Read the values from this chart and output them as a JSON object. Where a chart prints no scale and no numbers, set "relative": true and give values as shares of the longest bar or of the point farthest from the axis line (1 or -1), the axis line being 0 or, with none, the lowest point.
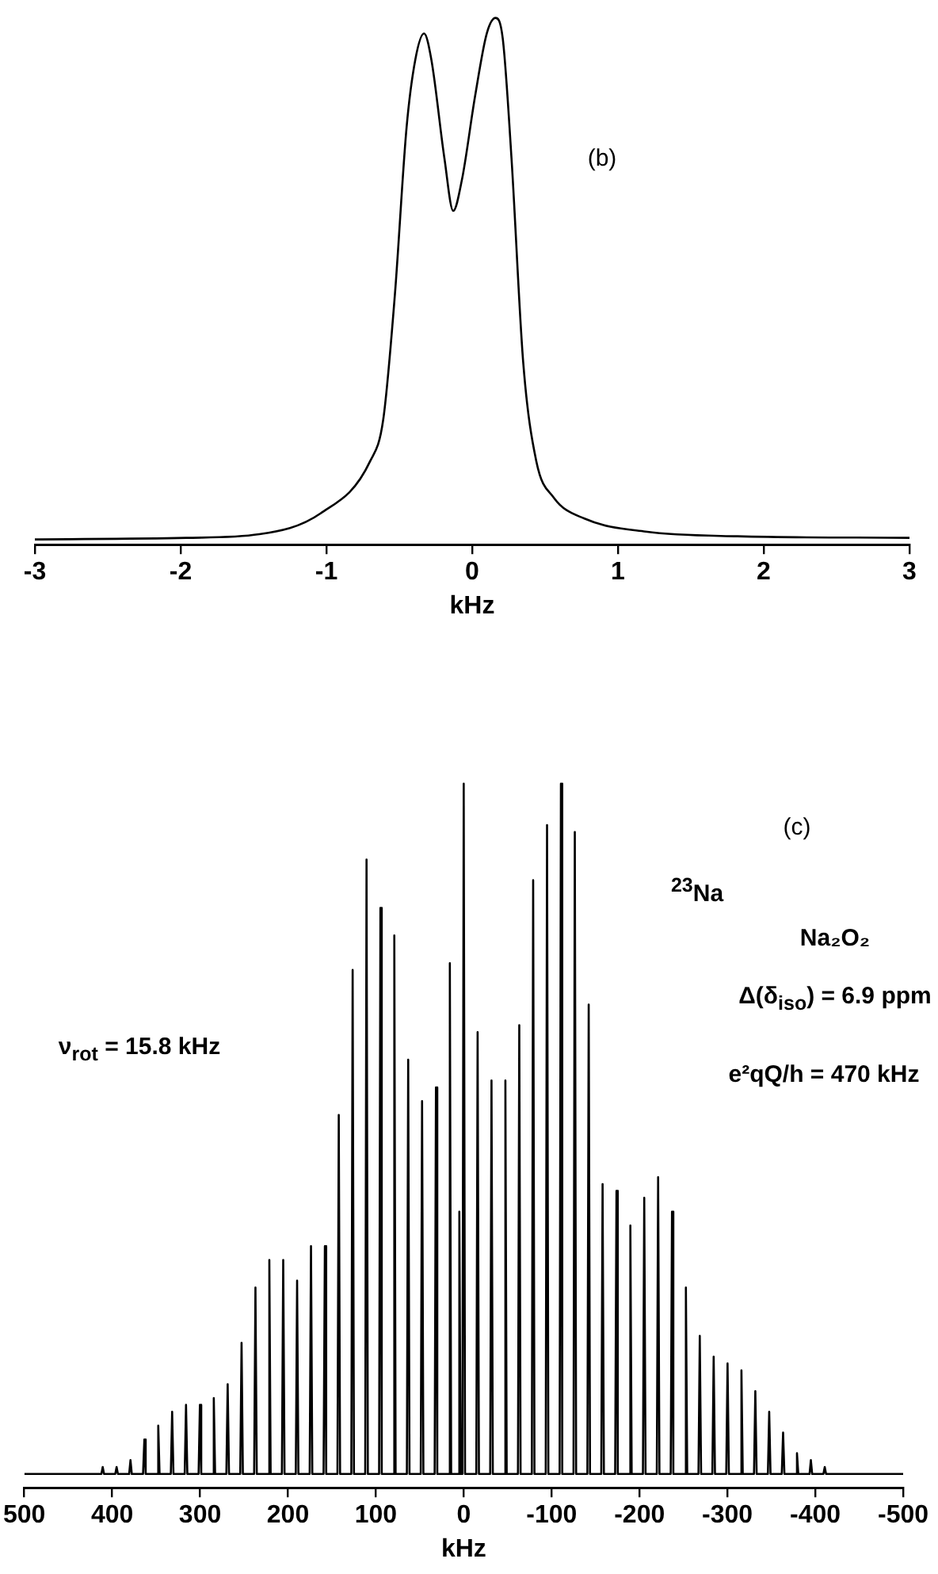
{
  "chart_data": [
    {
      "type": "line",
      "relative": true,
      "xlabel": "kHz",
      "annotations": [
        "(b)"
      ],
      "color": "#000000",
      "grid": false,
      "tick_labels": "x",
      "xlim": [
        -3,
        3
      ],
      "xticks": [
        -3,
        -2,
        -1,
        0,
        1,
        2,
        3
      ],
      "x": [
        -3.0,
        -1.96,
        -1.46,
        -1.04,
        -0.7,
        -0.61,
        -0.53,
        -0.45,
        -0.39,
        -0.33,
        -0.28,
        -0.19,
        -0.13,
        -0.07,
        0.02,
        0.1,
        0.16,
        0.21,
        0.27,
        0.35,
        0.44,
        0.56,
        0.77,
        1.19,
        1.82,
        3.0
      ],
      "values": [
        0,
        0.003,
        0.01,
        0.05,
        0.15,
        0.23,
        0.47,
        0.79,
        0.92,
        0.97,
        0.92,
        0.73,
        0.63,
        0.69,
        0.85,
        0.97,
        1.0,
        0.96,
        0.73,
        0.34,
        0.15,
        0.08,
        0.04,
        0.015,
        0.006,
        0.003
      ]
    },
    {
      "type": "line",
      "relative": true,
      "xlabel": "kHz",
      "annotations": [
        "(c)",
        "$^{23}$Na",
        "Na₂O₂",
        "Δ(δ$_{iso}$) = 6.9 ppm",
        "e²qQ/h = 470 kHz",
        "ν$_{rot}$ = 15.8 kHz"
      ],
      "color": "#000000",
      "grid": false,
      "tick_labels": "x",
      "xlim": [
        500,
        -500
      ],
      "xticks": [
        500,
        400,
        300,
        200,
        100,
        0,
        -100,
        -200,
        -300,
        -400,
        -500
      ],
      "x": [
        500,
        412.3,
        410.8,
        409.3,
        396.5,
        395,
        393.5,
        380.7,
        379.2,
        377.7,
        364.9,
        363.4,
        361.9,
        349.1,
        347.6,
        346.1,
        333.3,
        331.8,
        330.3,
        317.5,
        316,
        314.5,
        301.7,
        300.2,
        298.7,
        285.9,
        284.4,
        282.9,
        270.1,
        268.6,
        267.1,
        254.3,
        252.8,
        251.3,
        238.5,
        237,
        235.5,
        222.7,
        221.2,
        219.7,
        206.9,
        205.4,
        203.9,
        191.1,
        189.6,
        188.1,
        175.3,
        173.8,
        172.3,
        159.5,
        158,
        156.5,
        143.7,
        142.2,
        140.7,
        127.9,
        126.4,
        124.9,
        112.1,
        110.6,
        109.1,
        96.3,
        94.8,
        93.3,
        80.5,
        79,
        77.5,
        64.7,
        63.2,
        61.7,
        48.9,
        47.4,
        45.9,
        33.1,
        31.6,
        30.1,
        17.3,
        15.8,
        14.3,
        6.5,
        5,
        3.5,
        1.5,
        0,
        -1.5,
        -14.3,
        -15.8,
        -17.3,
        -30.1,
        -31.6,
        -33.1,
        -45.9,
        -47.4,
        -48.9,
        -61.7,
        -63.2,
        -64.7,
        -77.5,
        -79,
        -80.5,
        -93.3,
        -94.8,
        -96.3,
        -109.1,
        -110.6,
        -112.1,
        -124.9,
        -126.4,
        -127.9,
        -140.7,
        -142.2,
        -143.7,
        -156.5,
        -158,
        -159.5,
        -172.3,
        -173.8,
        -175.3,
        -188.1,
        -189.6,
        -191.1,
        -203.9,
        -205.4,
        -206.9,
        -219.7,
        -221.2,
        -222.7,
        -235.5,
        -237,
        -238.5,
        -251.3,
        -252.8,
        -254.3,
        -267.1,
        -268.6,
        -270.1,
        -282.9,
        -284.4,
        -285.9,
        -298.7,
        -300.2,
        -301.7,
        -314.5,
        -316,
        -317.5,
        -330.3,
        -331.8,
        -333.3,
        -346.1,
        -347.6,
        -349.1,
        -361.9,
        -363.4,
        -364.9,
        -377.7,
        -379.2,
        -380.7,
        -393.5,
        -395,
        -396.5,
        -409.3,
        -410.8,
        -412.3,
        -500
      ],
      "values": [
        0,
        0,
        0.01,
        0,
        0,
        0.01,
        0,
        0,
        0.02,
        0,
        0,
        0.05,
        0,
        0,
        0.07,
        0,
        0,
        0.09,
        0,
        0,
        0.1,
        0,
        0,
        0.1,
        0,
        0,
        0.11,
        0,
        0,
        0.13,
        0,
        0,
        0.19,
        0,
        0,
        0.27,
        0,
        0,
        0.31,
        0,
        0,
        0.31,
        0,
        0,
        0.28,
        0,
        0,
        0.33,
        0,
        0,
        0.33,
        0,
        0,
        0.52,
        0,
        0,
        0.73,
        0,
        0,
        0.89,
        0,
        0,
        0.82,
        0,
        0,
        0.78,
        0,
        0,
        0.6,
        0,
        0,
        0.54,
        0,
        0,
        0.56,
        0,
        0,
        0.74,
        0,
        0,
        0.38,
        0,
        0,
        1.0,
        0,
        0,
        0.64,
        0,
        0,
        0.57,
        0,
        0,
        0.57,
        0,
        0,
        0.65,
        0,
        0,
        0.86,
        0,
        0,
        0.94,
        0,
        0,
        1.0,
        0,
        0,
        0.93,
        0,
        0,
        0.68,
        0,
        0,
        0.42,
        0,
        0,
        0.41,
        0,
        0,
        0.36,
        0,
        0,
        0.4,
        0,
        0,
        0.43,
        0,
        0,
        0.38,
        0,
        0,
        0.27,
        0,
        0,
        0.2,
        0,
        0,
        0.17,
        0,
        0,
        0.16,
        0,
        0,
        0.15,
        0,
        0,
        0.12,
        0,
        0,
        0.09,
        0,
        0,
        0.06,
        0,
        0,
        0.03,
        0,
        0,
        0.02,
        0,
        0,
        0.01,
        0,
        0
      ]
    }
  ]
}
